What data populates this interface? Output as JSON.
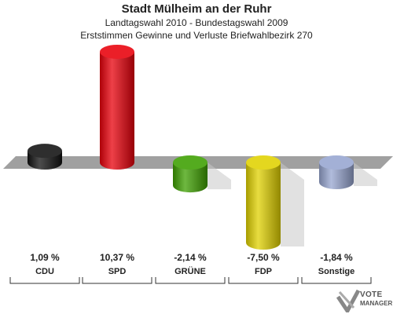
{
  "header": {
    "title": "Stadt Mülheim an der Ruhr",
    "subtitle1": "Landtagswahl 2010 - Bundestagswahl 2009",
    "subtitle2": "Erststimmen Gewinne und Verluste Briefwahlbezirk 270"
  },
  "logo": {
    "line1": "VOTE",
    "line2": "MANAGER"
  },
  "chart_data": {
    "type": "bar",
    "categories": [
      "CDU",
      "SPD",
      "GRÜNE",
      "FDP",
      "Sonstige"
    ],
    "values": [
      1.09,
      10.37,
      -2.14,
      -7.5,
      -1.84
    ],
    "value_labels": [
      "1,09 %",
      "10,37 %",
      "-2,14 %",
      "-7,50 %",
      "-1,84 %"
    ],
    "colors": [
      "#111111",
      "#e8000b",
      "#3da000",
      "#e0d100",
      "#97a5d0"
    ],
    "ylim": [
      -8,
      11
    ],
    "grid": false
  }
}
